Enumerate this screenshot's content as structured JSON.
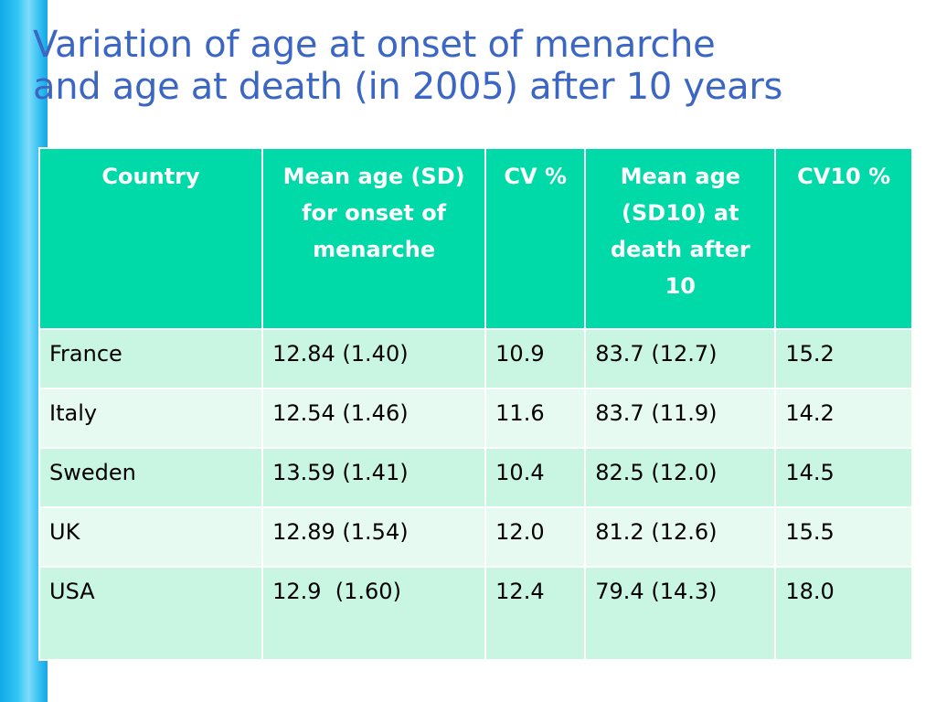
{
  "title": {
    "line1": "Variation of age at onset of menarche",
    "line2": "and age at death (in 2005) after 10 years"
  },
  "table": {
    "headers": [
      "Country",
      "Mean age (SD)  for onset of menarche",
      "CV %",
      "Mean age (SD10) at death after 10",
      "CV10 %"
    ],
    "rows": [
      [
        "France",
        "12.84 (1.40)",
        "10.9",
        "83.7 (12.7)",
        "15.2"
      ],
      [
        "Italy",
        "12.54 (1.46)",
        "11.6",
        "83.7 (11.9)",
        "14.2"
      ],
      [
        "Sweden",
        "13.59 (1.41)",
        "10.4",
        "82.5 (12.0)",
        "14.5"
      ],
      [
        "UK",
        "12.89 (1.54)",
        "12.0",
        "81.2 (12.6)",
        "15.5"
      ],
      [
        "USA",
        "12.9  (1.60)",
        "12.4",
        "79.4 (14.3)",
        "18.0"
      ]
    ]
  },
  "colors": {
    "title": "#3b66c4",
    "header_bg": "#00d9a8",
    "row_odd": "#c9f5e3",
    "row_even": "#e6faf1",
    "side_bar": "#2ec4f3"
  }
}
